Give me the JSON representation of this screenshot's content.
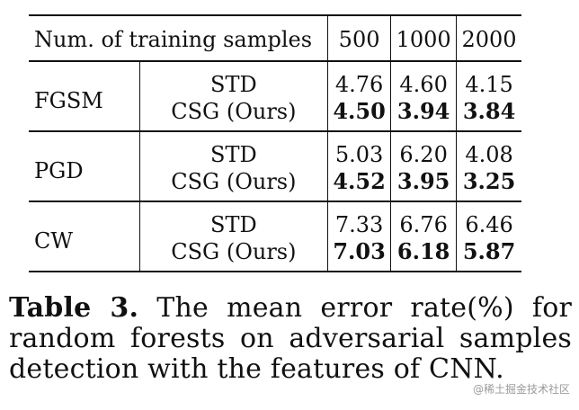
{
  "table": {
    "header": {
      "label": "Num. of training samples",
      "cols": [
        "500",
        "1000",
        "2000"
      ]
    },
    "groups": [
      {
        "attack": "FGSM",
        "rows": [
          {
            "method": "STD",
            "values": [
              "4.76",
              "4.60",
              "4.15"
            ],
            "bold": false
          },
          {
            "method": "CSG (Ours)",
            "values": [
              "4.50",
              "3.94",
              "3.84"
            ],
            "bold": true
          }
        ]
      },
      {
        "attack": "PGD",
        "rows": [
          {
            "method": "STD",
            "values": [
              "5.03",
              "6.20",
              "4.08"
            ],
            "bold": false
          },
          {
            "method": "CSG (Ours)",
            "values": [
              "4.52",
              "3.95",
              "3.25"
            ],
            "bold": true
          }
        ]
      },
      {
        "attack": "CW",
        "rows": [
          {
            "method": "STD",
            "values": [
              "7.33",
              "6.76",
              "6.46"
            ],
            "bold": false
          },
          {
            "method": "CSG (Ours)",
            "values": [
              "7.03",
              "6.18",
              "5.87"
            ],
            "bold": true
          }
        ]
      }
    ]
  },
  "caption": {
    "label": "Table 3.",
    "text": "The mean error rate(%) for random forests on adversarial samples detection with the features of CNN."
  },
  "watermark": "@稀土掘金技术社区"
}
